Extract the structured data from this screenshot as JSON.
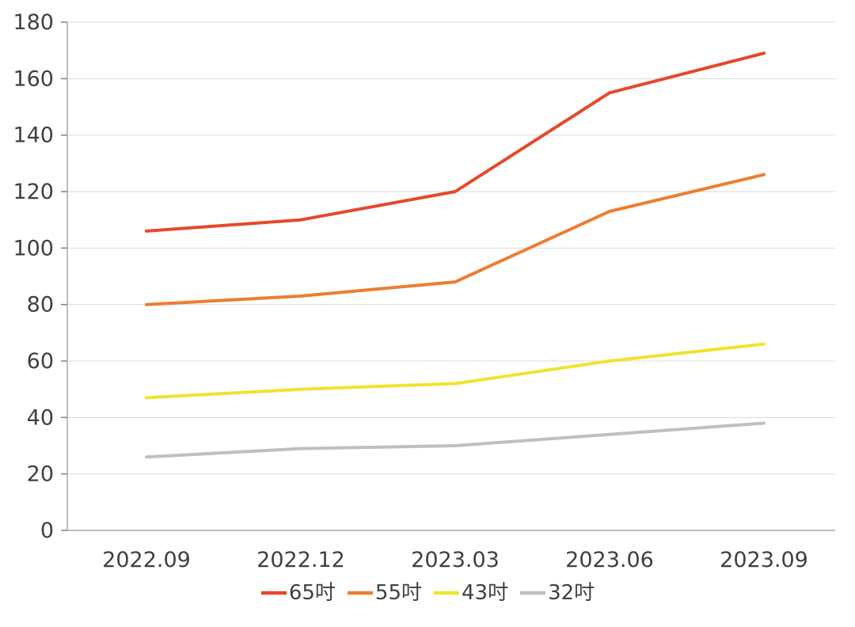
{
  "chart_data": {
    "type": "line",
    "title": "",
    "xlabel": "",
    "ylabel": "",
    "categories": [
      "2022.09",
      "2022.12",
      "2023.03",
      "2023.06",
      "2023.09"
    ],
    "series": [
      {
        "name": "65吋",
        "color": "#e5492a",
        "values": [
          106,
          110,
          120,
          155,
          169
        ]
      },
      {
        "name": "55吋",
        "color": "#ed7d31",
        "values": [
          80,
          83,
          88,
          113,
          126
        ]
      },
      {
        "name": "43吋",
        "color": "#f1e32e",
        "values": [
          47,
          50,
          52,
          60,
          66
        ]
      },
      {
        "name": "32吋",
        "color": "#bfbfbf",
        "values": [
          26,
          29,
          30,
          34,
          38
        ]
      }
    ],
    "ylim": [
      0,
      180
    ],
    "ytick_step": 20,
    "grid": "horizontal",
    "legend_position": "bottom",
    "style": {
      "grid_color": "#d9d9d9",
      "axis_color": "#a6a6a6",
      "tick_color": "#808080",
      "text_color": "#404040",
      "background": "#ffffff",
      "line_width": 4
    }
  }
}
